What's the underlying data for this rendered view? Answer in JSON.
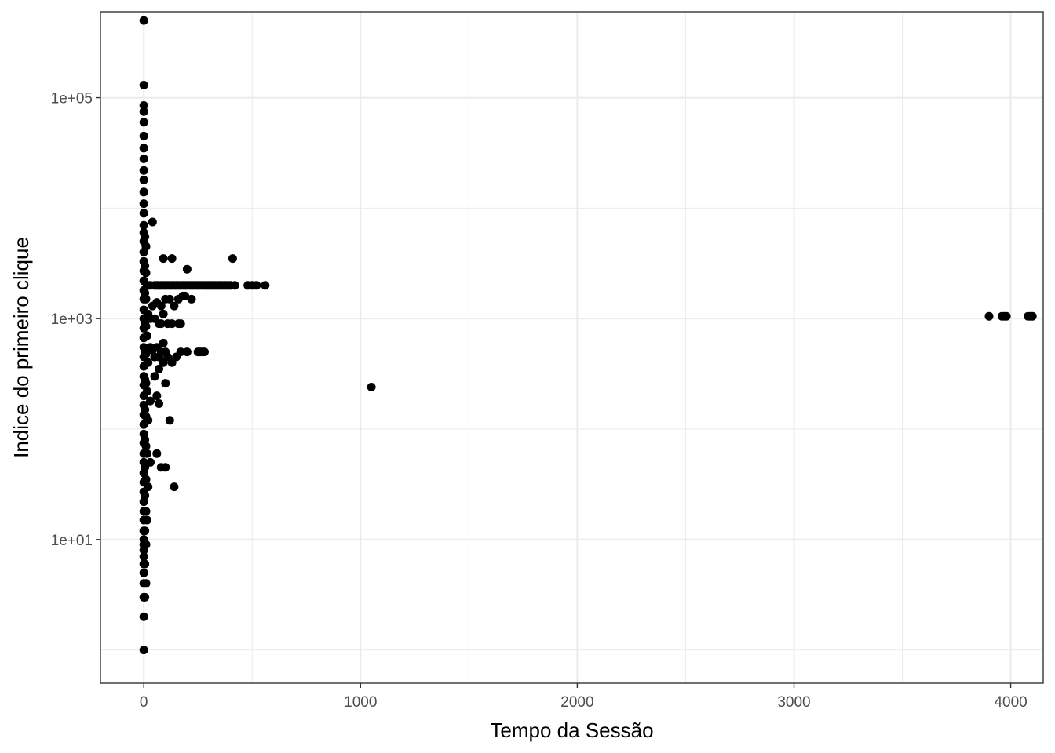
{
  "chart_data": {
    "type": "scatter",
    "title": "",
    "xlabel": "Tempo da Sessão",
    "ylabel": "Indice do primeiro clique",
    "x_scale": "linear",
    "y_scale": "log10",
    "xlim": [
      -200,
      4150
    ],
    "ylim": [
      0.5,
      600000
    ],
    "x_ticks": [
      0,
      1000,
      2000,
      3000,
      4000
    ],
    "x_tick_labels": [
      "0",
      "1000",
      "2000",
      "3000",
      "4000"
    ],
    "y_ticks": [
      10,
      1000,
      100000
    ],
    "y_tick_labels": [
      "1e+01",
      "1e+03",
      "1e+05"
    ],
    "grid": true,
    "legend": "none",
    "colors": {
      "points": "#000000",
      "grid": "#ebebeb",
      "panel_border": "#333333",
      "background": "#ffffff"
    },
    "series": [
      {
        "points": [
          [
            0,
            1
          ],
          [
            0,
            2
          ],
          [
            0,
            3
          ],
          [
            0,
            4
          ],
          [
            0,
            5
          ],
          [
            0,
            6
          ],
          [
            0,
            7
          ],
          [
            0,
            8
          ],
          [
            0,
            9
          ],
          [
            0,
            10
          ],
          [
            0,
            12
          ],
          [
            0,
            15
          ],
          [
            0,
            18
          ],
          [
            0,
            22
          ],
          [
            0,
            27
          ],
          [
            0,
            33
          ],
          [
            0,
            40
          ],
          [
            0,
            50
          ],
          [
            0,
            60
          ],
          [
            0,
            75
          ],
          [
            0,
            90
          ],
          [
            0,
            110
          ],
          [
            0,
            135
          ],
          [
            0,
            165
          ],
          [
            0,
            200
          ],
          [
            0,
            250
          ],
          [
            0,
            300
          ],
          [
            0,
            370
          ],
          [
            0,
            450
          ],
          [
            0,
            550
          ],
          [
            0,
            670
          ],
          [
            0,
            820
          ],
          [
            0,
            1000
          ],
          [
            0,
            1200
          ],
          [
            0,
            1500
          ],
          [
            0,
            1800
          ],
          [
            0,
            2200
          ],
          [
            0,
            2700
          ],
          [
            0,
            3300
          ],
          [
            0,
            4000
          ],
          [
            0,
            5000
          ],
          [
            0,
            6000
          ],
          [
            0,
            7000
          ],
          [
            0,
            9000
          ],
          [
            0,
            11000
          ],
          [
            0,
            14000
          ],
          [
            0,
            18000
          ],
          [
            0,
            22000
          ],
          [
            0,
            28000
          ],
          [
            0,
            35000
          ],
          [
            0,
            45000
          ],
          [
            0,
            60000
          ],
          [
            0,
            75000
          ],
          [
            0,
            85000
          ],
          [
            0,
            130000
          ],
          [
            0,
            500000
          ],
          [
            5,
            3
          ],
          [
            5,
            6
          ],
          [
            5,
            12
          ],
          [
            5,
            25
          ],
          [
            5,
            45
          ],
          [
            5,
            80
          ],
          [
            5,
            150
          ],
          [
            5,
            280
          ],
          [
            5,
            500
          ],
          [
            5,
            900
          ],
          [
            5,
            1700
          ],
          [
            5,
            3000
          ],
          [
            5,
            5500
          ],
          [
            10,
            4
          ],
          [
            10,
            9
          ],
          [
            10,
            18
          ],
          [
            10,
            35
          ],
          [
            10,
            70
          ],
          [
            10,
            130
          ],
          [
            10,
            260
          ],
          [
            10,
            480
          ],
          [
            10,
            850
          ],
          [
            10,
            1500
          ],
          [
            10,
            2600
          ],
          [
            10,
            4500
          ],
          [
            15,
            15
          ],
          [
            15,
            60
          ],
          [
            15,
            220
          ],
          [
            15,
            700
          ],
          [
            15,
            2000
          ],
          [
            20,
            30
          ],
          [
            20,
            120
          ],
          [
            20,
            400
          ],
          [
            20,
            1100
          ],
          [
            20,
            2000
          ],
          [
            30,
            50
          ],
          [
            30,
            180
          ],
          [
            30,
            550
          ],
          [
            30,
            1000
          ],
          [
            30,
            2000
          ],
          [
            40,
            7500
          ],
          [
            40,
            520
          ],
          [
            40,
            1300
          ],
          [
            50,
            2000
          ],
          [
            50,
            450
          ],
          [
            50,
            1000
          ],
          [
            50,
            300
          ],
          [
            60,
            2000
          ],
          [
            60,
            60
          ],
          [
            60,
            200
          ],
          [
            60,
            550
          ],
          [
            60,
            1400
          ],
          [
            70,
            2000
          ],
          [
            70,
            450
          ],
          [
            70,
            900
          ],
          [
            70,
            170
          ],
          [
            70,
            350
          ],
          [
            80,
            2000
          ],
          [
            80,
            1300
          ],
          [
            80,
            900
          ],
          [
            80,
            500
          ],
          [
            80,
            45
          ],
          [
            90,
            2000
          ],
          [
            90,
            3500
          ],
          [
            90,
            600
          ],
          [
            90,
            400
          ],
          [
            90,
            1100
          ],
          [
            100,
            2000
          ],
          [
            100,
            500
          ],
          [
            100,
            1500
          ],
          [
            100,
            45
          ],
          [
            100,
            260
          ],
          [
            110,
            2000
          ],
          [
            110,
            900
          ],
          [
            110,
            450
          ],
          [
            120,
            2000
          ],
          [
            120,
            120
          ],
          [
            120,
            1500
          ],
          [
            130,
            2000
          ],
          [
            130,
            3500
          ],
          [
            130,
            400
          ],
          [
            130,
            900
          ],
          [
            140,
            2000
          ],
          [
            140,
            30
          ],
          [
            140,
            1300
          ],
          [
            150,
            2000
          ],
          [
            150,
            450
          ],
          [
            160,
            2000
          ],
          [
            160,
            1500
          ],
          [
            160,
            900
          ],
          [
            170,
            2000
          ],
          [
            170,
            500
          ],
          [
            170,
            900
          ],
          [
            180,
            2000
          ],
          [
            180,
            1600
          ],
          [
            190,
            2000
          ],
          [
            190,
            1600
          ],
          [
            200,
            2000
          ],
          [
            200,
            2800
          ],
          [
            200,
            500
          ],
          [
            210,
            2000
          ],
          [
            220,
            2000
          ],
          [
            220,
            1500
          ],
          [
            230,
            2000
          ],
          [
            240,
            2000
          ],
          [
            250,
            2000
          ],
          [
            250,
            500
          ],
          [
            260,
            2000
          ],
          [
            260,
            500
          ],
          [
            270,
            2000
          ],
          [
            270,
            500
          ],
          [
            280,
            2000
          ],
          [
            280,
            500
          ],
          [
            290,
            2000
          ],
          [
            300,
            2000
          ],
          [
            310,
            2000
          ],
          [
            320,
            2000
          ],
          [
            330,
            2000
          ],
          [
            340,
            2000
          ],
          [
            350,
            2000
          ],
          [
            360,
            2000
          ],
          [
            370,
            2000
          ],
          [
            380,
            2000
          ],
          [
            390,
            2000
          ],
          [
            400,
            2000
          ],
          [
            410,
            3500
          ],
          [
            420,
            2000
          ],
          [
            480,
            2000
          ],
          [
            500,
            2000
          ],
          [
            520,
            2000
          ],
          [
            560,
            2000
          ],
          [
            1050,
            240
          ],
          [
            3900,
            1050
          ],
          [
            3960,
            1050
          ],
          [
            3970,
            1050
          ],
          [
            3980,
            1050
          ],
          [
            4080,
            1050
          ],
          [
            4090,
            1050
          ],
          [
            4100,
            1050
          ]
        ]
      }
    ]
  }
}
